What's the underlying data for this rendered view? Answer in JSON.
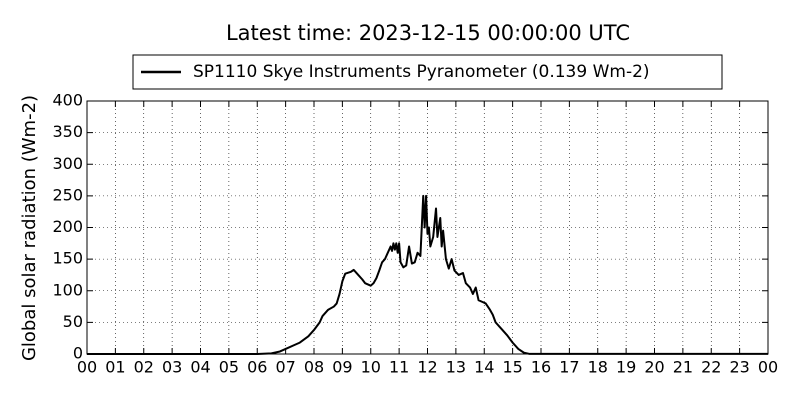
{
  "chart_data": {
    "type": "line",
    "title": "Latest time: 2023-12-15 00:00:00 UTC",
    "y_label": "Global solar radiation (Wm-2)",
    "legend": "upper center",
    "grid": true,
    "xlim": [
      0,
      24
    ],
    "xticks": [
      {
        "value": 0,
        "label": "00"
      },
      {
        "value": 1,
        "label": "01"
      },
      {
        "value": 2,
        "label": "02"
      },
      {
        "value": 3,
        "label": "03"
      },
      {
        "value": 4,
        "label": "04"
      },
      {
        "value": 5,
        "label": "05"
      },
      {
        "value": 6,
        "label": "06"
      },
      {
        "value": 7,
        "label": "07"
      },
      {
        "value": 8,
        "label": "08"
      },
      {
        "value": 9,
        "label": "09"
      },
      10,
      11,
      12,
      13,
      14,
      15,
      16,
      17,
      18,
      19,
      20,
      21,
      22,
      23,
      {
        "value": 24,
        "label": "00"
      }
    ],
    "ylim": [
      0,
      400
    ],
    "yticks": [
      0,
      50,
      100,
      150,
      200,
      250,
      300,
      350,
      400
    ],
    "x": [
      0,
      6,
      6.5,
      6.8,
      7,
      7.3,
      7.5,
      7.8,
      8,
      8.2,
      8.3,
      8.5,
      8.7,
      8.8,
      8.9,
      9.0,
      9.1,
      9.3,
      9.4,
      9.5,
      9.7,
      9.8,
      10.0,
      10.1,
      10.2,
      10.3,
      10.4,
      10.5,
      10.6,
      10.7,
      10.75,
      10.8,
      10.85,
      10.9,
      10.95,
      11.0,
      11.05,
      11.15,
      11.25,
      11.35,
      11.45,
      11.55,
      11.65,
      11.75,
      11.85,
      11.9,
      11.95,
      12.0,
      12.05,
      12.1,
      12.2,
      12.3,
      12.35,
      12.45,
      12.5,
      12.55,
      12.65,
      12.75,
      12.85,
      12.95,
      13.1,
      13.25,
      13.35,
      13.5,
      13.6,
      13.7,
      13.8,
      13.95,
      14.05,
      14.2,
      14.3,
      14.4,
      14.6,
      14.8,
      15.0,
      15.2,
      15.4,
      15.6,
      24
    ],
    "series": [
      {
        "name": "SP1110 Skye Instruments Pyranometer (0.139 Wm-2)",
        "color": "#000000",
        "values": [
          0,
          0,
          1,
          4,
          8,
          14,
          18,
          28,
          38,
          50,
          60,
          70,
          75,
          80,
          95,
          115,
          127,
          130,
          133,
          128,
          118,
          112,
          108,
          112,
          120,
          132,
          145,
          150,
          160,
          170,
          163,
          175,
          165,
          175,
          160,
          175,
          145,
          137,
          140,
          170,
          143,
          145,
          160,
          155,
          250,
          200,
          250,
          190,
          200,
          170,
          185,
          230,
          185,
          215,
          170,
          195,
          150,
          135,
          150,
          132,
          125,
          128,
          112,
          105,
          95,
          105,
          85,
          82,
          80,
          70,
          62,
          50,
          40,
          30,
          18,
          8,
          2,
          0.1,
          0.1
        ]
      }
    ]
  }
}
